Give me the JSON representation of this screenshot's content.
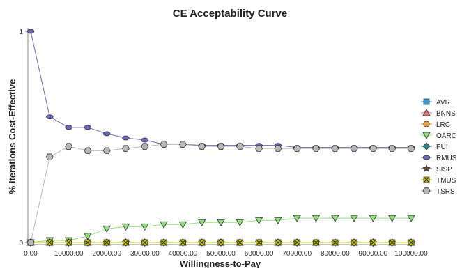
{
  "chart_data": {
    "type": "line",
    "title": "CE Acceptability Curve",
    "xlabel": "Willingness-to-Pay",
    "ylabel": "% Iterations Cost-Effective",
    "x": [
      0,
      5000,
      10000,
      15000,
      20000,
      25000,
      30000,
      35000,
      40000,
      45000,
      50000,
      55000,
      60000,
      65000,
      70000,
      75000,
      80000,
      85000,
      90000,
      95000,
      100000
    ],
    "x_ticks": [
      0,
      10000,
      20000,
      30000,
      40000,
      50000,
      60000,
      70000,
      80000,
      90000,
      100000
    ],
    "x_tick_labels": [
      "0.00",
      "10000.00",
      "20000.00",
      "30000.00",
      "40000.00",
      "50000.00",
      "60000.00",
      "70000.00",
      "80000.00",
      "90000.00",
      "100000.00"
    ],
    "y_ticks": [
      0,
      1
    ],
    "y_tick_labels": [
      "0",
      "1"
    ],
    "xlim": [
      0,
      100000
    ],
    "ylim": [
      0,
      1
    ],
    "grid": false,
    "legend_position": "right",
    "series": [
      {
        "name": "AVR",
        "color": "#3a9ad9",
        "marker": "square",
        "values": [
          0,
          0,
          0,
          0,
          0,
          0,
          0,
          0,
          0,
          0,
          0,
          0,
          0,
          0,
          0,
          0,
          0,
          0,
          0,
          0,
          0
        ]
      },
      {
        "name": "BNNS",
        "color": "#e0707a",
        "marker": "triangle-up",
        "values": [
          0,
          0,
          0,
          0,
          0,
          0,
          0,
          0,
          0,
          0,
          0,
          0,
          0,
          0,
          0,
          0,
          0,
          0,
          0,
          0,
          0
        ]
      },
      {
        "name": "LRC",
        "color": "#f0a030",
        "marker": "circle",
        "values": [
          0,
          0,
          0,
          0,
          0,
          0,
          0,
          0,
          0,
          0,
          0,
          0,
          0,
          0,
          0,
          0,
          0,
          0,
          0,
          0,
          0
        ]
      },
      {
        "name": "OARC",
        "color": "#8ee07a",
        "marker": "triangle-down",
        "values": [
          0,
          0.01,
          0.01,
          0.03,
          0.065,
          0.075,
          0.075,
          0.085,
          0.085,
          0.095,
          0.095,
          0.095,
          0.105,
          0.105,
          0.115,
          0.115,
          0.115,
          0.115,
          0.115,
          0.115,
          0.115
        ]
      },
      {
        "name": "PUI",
        "color": "#2a8a8a",
        "marker": "diamond",
        "values": [
          0,
          0,
          0,
          0,
          0,
          0,
          0,
          0,
          0,
          0,
          0,
          0,
          0,
          0,
          0,
          0,
          0,
          0,
          0,
          0,
          0
        ]
      },
      {
        "name": "RMUS",
        "color": "#6a6ab8",
        "marker": "ellipse",
        "values": [
          1,
          0.595,
          0.545,
          0.545,
          0.515,
          0.495,
          0.485,
          0.465,
          0.465,
          0.46,
          0.46,
          0.46,
          0.46,
          0.46,
          0.45,
          0.45,
          0.45,
          0.45,
          0.45,
          0.45,
          0.45
        ]
      },
      {
        "name": "SISP",
        "color": "#6a4a3a",
        "marker": "star",
        "values": [
          0,
          0,
          0,
          0,
          0,
          0,
          0,
          0,
          0,
          0,
          0,
          0,
          0,
          0,
          0,
          0,
          0,
          0,
          0,
          0,
          0
        ]
      },
      {
        "name": "TMUS",
        "color": "#c8c800",
        "marker": "x-square",
        "values": [
          0,
          0,
          0,
          0,
          0,
          0,
          0,
          0,
          0,
          0,
          0,
          0,
          0,
          0,
          0,
          0,
          0,
          0,
          0,
          0,
          0
        ]
      },
      {
        "name": "TSRS",
        "color": "#b8b8b8",
        "marker": "hexagon",
        "values": [
          0,
          0.405,
          0.455,
          0.435,
          0.435,
          0.445,
          0.455,
          0.465,
          0.465,
          0.455,
          0.455,
          0.455,
          0.445,
          0.445,
          0.445,
          0.445,
          0.445,
          0.445,
          0.445,
          0.445,
          0.445
        ]
      }
    ]
  }
}
